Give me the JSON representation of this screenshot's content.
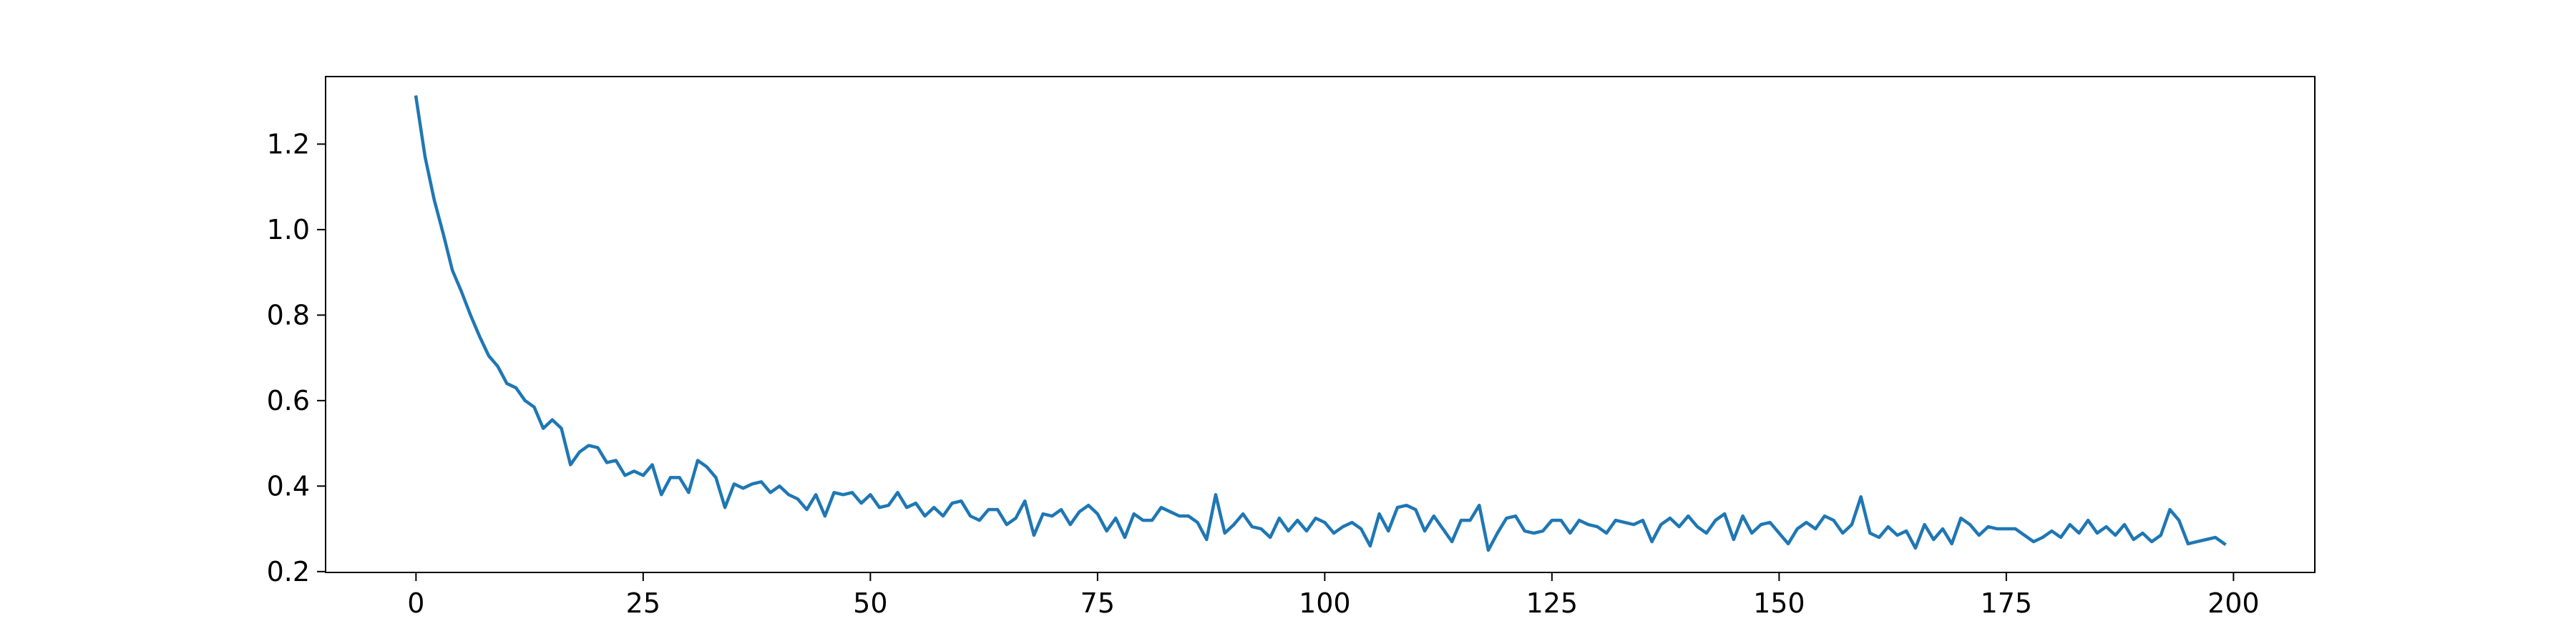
{
  "chart_data": {
    "type": "line",
    "title": "",
    "xlabel": "",
    "ylabel": "",
    "xlim": [
      -9.95,
      208.95
    ],
    "ylim": [
      0.198,
      1.358
    ],
    "xticks": [
      0,
      25,
      50,
      75,
      100,
      125,
      150,
      175,
      200
    ],
    "yticks": [
      0.2,
      0.4,
      0.6,
      0.8,
      1.0,
      1.2
    ],
    "ytick_labels": [
      "0.2",
      "0.4",
      "0.6",
      "0.8",
      "1.0",
      "1.2"
    ],
    "grid": false,
    "legend": "none",
    "series": [
      {
        "color": "#1f77b4",
        "x": [
          0,
          1,
          2,
          3,
          4,
          5,
          6,
          7,
          8,
          9,
          10,
          11,
          12,
          13,
          14,
          15,
          16,
          17,
          18,
          19,
          20,
          21,
          22,
          23,
          24,
          25,
          26,
          27,
          28,
          29,
          30,
          31,
          32,
          33,
          34,
          35,
          36,
          37,
          38,
          39,
          40,
          41,
          42,
          43,
          44,
          45,
          46,
          47,
          48,
          49,
          50,
          51,
          52,
          53,
          54,
          55,
          56,
          57,
          58,
          59,
          60,
          61,
          62,
          63,
          64,
          65,
          66,
          67,
          68,
          69,
          70,
          71,
          72,
          73,
          74,
          75,
          76,
          77,
          78,
          79,
          80,
          81,
          82,
          83,
          84,
          85,
          86,
          87,
          88,
          89,
          90,
          91,
          92,
          93,
          94,
          95,
          96,
          97,
          98,
          99,
          100,
          101,
          102,
          103,
          104,
          105,
          106,
          107,
          108,
          109,
          110,
          111,
          112,
          113,
          114,
          115,
          116,
          117,
          118,
          119,
          120,
          121,
          122,
          123,
          124,
          125,
          126,
          127,
          128,
          129,
          130,
          131,
          132,
          133,
          134,
          135,
          136,
          137,
          138,
          139,
          140,
          141,
          142,
          143,
          144,
          145,
          146,
          147,
          148,
          149,
          150,
          151,
          152,
          153,
          154,
          155,
          156,
          157,
          158,
          159,
          160,
          161,
          162,
          163,
          164,
          165,
          166,
          167,
          168,
          169,
          170,
          171,
          172,
          173,
          174,
          175,
          176,
          177,
          178,
          179,
          180,
          181,
          182,
          183,
          184,
          185,
          186,
          187,
          188,
          189,
          190,
          191,
          192,
          193,
          194,
          195,
          196,
          197,
          198,
          199
        ],
        "y": [
          1.31,
          1.17,
          1.07,
          0.99,
          0.905,
          0.855,
          0.8,
          0.75,
          0.705,
          0.68,
          0.64,
          0.63,
          0.6,
          0.585,
          0.535,
          0.555,
          0.535,
          0.45,
          0.48,
          0.495,
          0.49,
          0.455,
          0.46,
          0.425,
          0.435,
          0.425,
          0.45,
          0.38,
          0.42,
          0.42,
          0.385,
          0.46,
          0.445,
          0.42,
          0.35,
          0.405,
          0.395,
          0.405,
          0.41,
          0.385,
          0.4,
          0.38,
          0.37,
          0.345,
          0.38,
          0.33,
          0.385,
          0.38,
          0.385,
          0.36,
          0.38,
          0.35,
          0.355,
          0.385,
          0.35,
          0.36,
          0.33,
          0.35,
          0.33,
          0.36,
          0.365,
          0.33,
          0.32,
          0.345,
          0.345,
          0.31,
          0.325,
          0.365,
          0.285,
          0.335,
          0.33,
          0.345,
          0.31,
          0.34,
          0.355,
          0.335,
          0.295,
          0.325,
          0.28,
          0.335,
          0.32,
          0.32,
          0.35,
          0.34,
          0.33,
          0.33,
          0.315,
          0.275,
          0.38,
          0.29,
          0.31,
          0.335,
          0.305,
          0.3,
          0.28,
          0.325,
          0.295,
          0.32,
          0.295,
          0.325,
          0.315,
          0.29,
          0.305,
          0.315,
          0.3,
          0.26,
          0.335,
          0.295,
          0.35,
          0.355,
          0.345,
          0.295,
          0.33,
          0.3,
          0.27,
          0.32,
          0.32,
          0.355,
          0.25,
          0.29,
          0.325,
          0.33,
          0.295,
          0.29,
          0.295,
          0.32,
          0.32,
          0.29,
          0.32,
          0.31,
          0.305,
          0.29,
          0.32,
          0.315,
          0.31,
          0.32,
          0.27,
          0.31,
          0.325,
          0.305,
          0.33,
          0.305,
          0.29,
          0.32,
          0.335,
          0.275,
          0.33,
          0.29,
          0.31,
          0.315,
          0.29,
          0.265,
          0.3,
          0.315,
          0.3,
          0.33,
          0.32,
          0.29,
          0.31,
          0.375,
          0.29,
          0.28,
          0.305,
          0.285,
          0.295,
          0.255,
          0.31,
          0.275,
          0.3,
          0.265,
          0.325,
          0.31,
          0.285,
          0.305,
          0.3,
          0.3,
          0.3,
          0.285,
          0.27,
          0.28,
          0.295,
          0.28,
          0.31,
          0.29,
          0.32,
          0.29,
          0.305,
          0.285,
          0.31,
          0.275,
          0.29,
          0.27,
          0.285,
          0.345,
          0.32,
          0.265,
          0.27,
          0.275,
          0.28,
          0.265
        ]
      }
    ]
  }
}
